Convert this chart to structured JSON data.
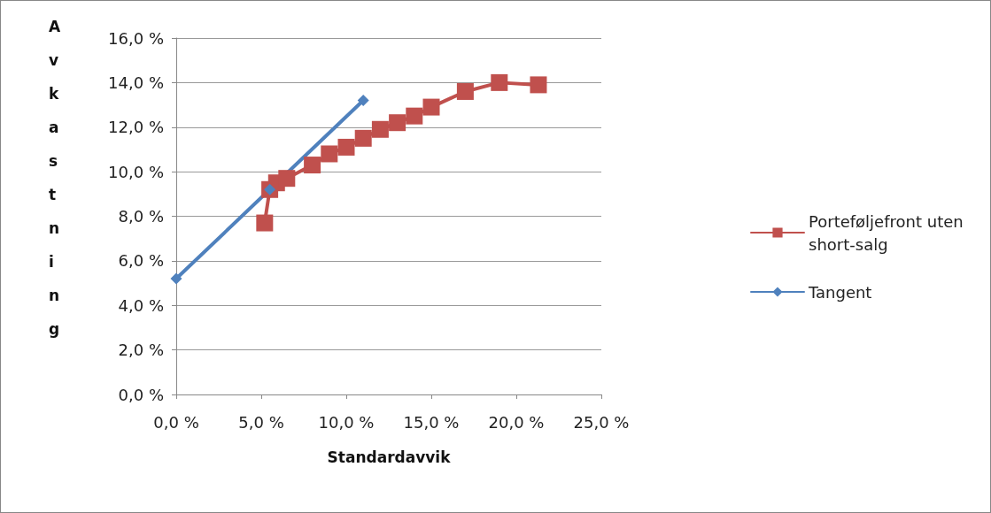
{
  "chart_data": {
    "type": "line",
    "xlabel": "Standardavvik",
    "ylabel": "Avkastning",
    "xlim": [
      0,
      25
    ],
    "xticks": [
      {
        "value": 0,
        "label": "0,0 %"
      },
      {
        "value": 5,
        "label": "5,0 %"
      },
      {
        "value": 10,
        "label": "10,0 %"
      },
      {
        "value": 15,
        "label": "15,0 %"
      },
      {
        "value": 20,
        "label": "20,0 %"
      },
      {
        "value": 25,
        "label": "25,0 %"
      }
    ],
    "ylim": [
      0,
      16
    ],
    "yticks": [
      {
        "value": 0,
        "label": "0,0 %"
      },
      {
        "value": 2,
        "label": "2,0 %"
      },
      {
        "value": 4,
        "label": "4,0 %"
      },
      {
        "value": 6,
        "label": "6,0 %"
      },
      {
        "value": 8,
        "label": "8,0 %"
      },
      {
        "value": 10,
        "label": "10,0 %"
      },
      {
        "value": 12,
        "label": "12,0 %"
      },
      {
        "value": 14,
        "label": "14,0 %"
      },
      {
        "value": 16,
        "label": "16,0 %"
      }
    ],
    "grid": "y",
    "legend": "right",
    "line_style": "solid",
    "series": [
      {
        "name": "Porteføljefront uten short-salg",
        "color": "#c0504d",
        "marker": "square",
        "x": [
          5.2,
          5.5,
          5.9,
          6.5,
          8.0,
          9.0,
          10.0,
          11.0,
          12.0,
          13.0,
          14.0,
          15.0,
          17.0,
          19.0,
          21.3
        ],
        "values": [
          7.7,
          9.2,
          9.5,
          9.7,
          10.3,
          10.8,
          11.1,
          11.5,
          11.9,
          12.2,
          12.5,
          12.9,
          13.6,
          14.0,
          13.9
        ]
      },
      {
        "name": "Tangent",
        "color": "#4f81bd",
        "marker": "diamond",
        "x": [
          0,
          5.5,
          11.0
        ],
        "values": [
          5.2,
          9.2,
          13.2
        ]
      }
    ]
  }
}
